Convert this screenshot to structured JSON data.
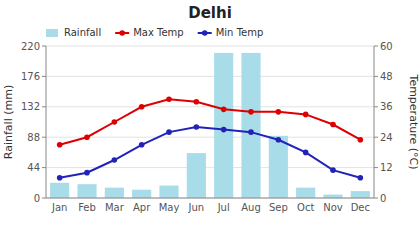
{
  "chart_data": {
    "type": "bar",
    "title": "Delhi",
    "categories": [
      "Jan",
      "Feb",
      "Mar",
      "Apr",
      "May",
      "Jun",
      "Jul",
      "Aug",
      "Sep",
      "Oct",
      "Nov",
      "Dec"
    ],
    "series": [
      {
        "name": "Rainfall",
        "type": "bar",
        "color": "#a8dce8",
        "values": [
          22,
          20,
          15,
          12,
          18,
          65,
          210,
          210,
          90,
          15,
          5,
          10
        ]
      },
      {
        "name": "Max Temp",
        "type": "line",
        "axis": "y2",
        "color": "#dd0000",
        "marker": "circle",
        "line_style": "solid",
        "values": [
          21,
          24,
          30,
          36,
          39,
          38,
          35,
          34,
          34,
          33,
          29,
          23
        ]
      },
      {
        "name": "Min Temp",
        "type": "line",
        "axis": "y2",
        "color": "#2222bb",
        "marker": "circle",
        "line_style": "solid",
        "values": [
          8,
          10,
          15,
          21,
          26,
          28,
          27,
          26,
          23,
          18,
          11,
          8
        ]
      }
    ],
    "ylabel": "Rainfall (mm)",
    "y2label": "Temperature (°C)",
    "ylim": [
      0,
      220
    ],
    "yticks": [
      0,
      44,
      88,
      132,
      176,
      220
    ],
    "y2lim": [
      0,
      60
    ],
    "y2ticks": [
      0,
      12,
      24,
      36,
      48,
      60
    ],
    "grid": true,
    "legend": "upper left"
  }
}
